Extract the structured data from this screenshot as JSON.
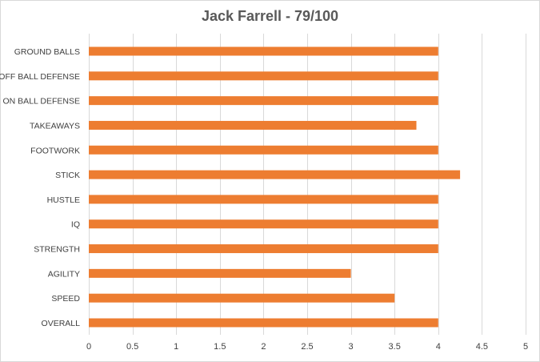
{
  "chart_data": {
    "type": "bar",
    "orientation": "horizontal",
    "title": "Jack Farrell - 79/100",
    "categories": [
      "GROUND BALLS",
      "OFF BALL DEFENSE",
      "ON BALL DEFENSE",
      "TAKEAWAYS",
      "FOOTWORK",
      "STICK",
      "HUSTLE",
      "IQ",
      "STRENGTH",
      "AGILITY",
      "SPEED",
      "OVERALL"
    ],
    "values": [
      4,
      4,
      4,
      3.75,
      4,
      4.25,
      4,
      4,
      4,
      3,
      3.5,
      4
    ],
    "xlim": [
      0,
      5
    ],
    "xticks": [
      "0",
      "0.5",
      "1",
      "1.5",
      "2",
      "2.5",
      "3",
      "3.5",
      "4",
      "4.5",
      "5"
    ],
    "grid": "vertical",
    "legend": "none",
    "colors": {
      "bar": "#ED7D31",
      "grid": "#d9d9d9",
      "text": "#404040",
      "title": "#595959"
    }
  }
}
